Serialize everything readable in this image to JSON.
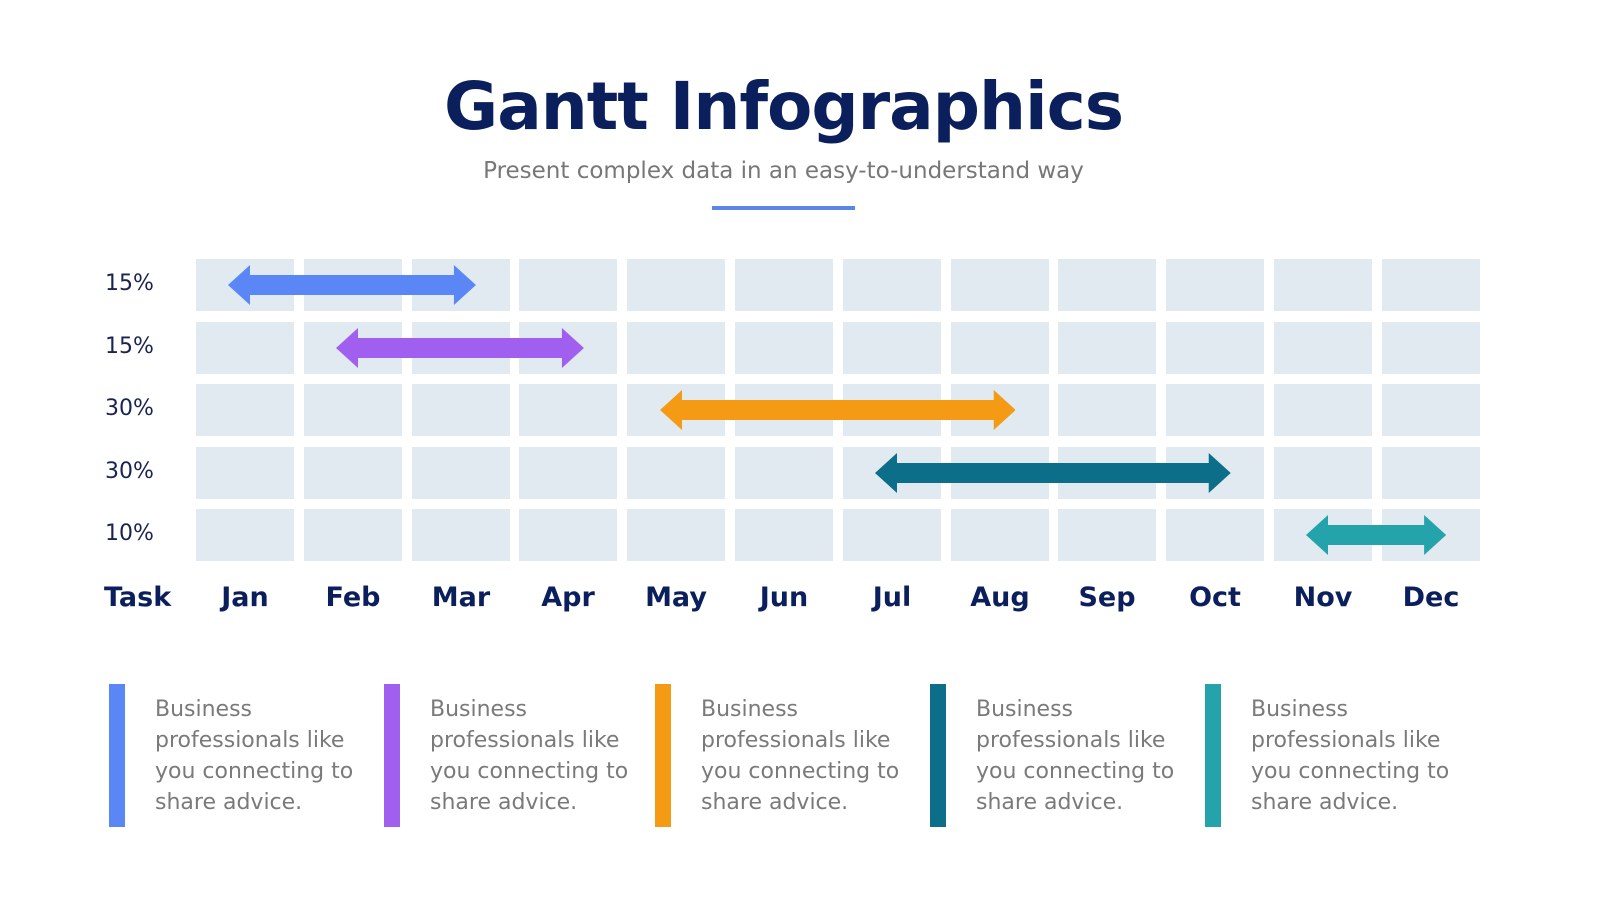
{
  "header": {
    "title": "Gantt Infographics",
    "subtitle": "Present complex data in an easy-to-understand way",
    "underline_color": "#5b86e5"
  },
  "chart_data": {
    "type": "gantt",
    "title": "Gantt Infographics",
    "subtitle": "Present complex data in an easy-to-understand way",
    "xlabel": "Task",
    "categories": [
      "Jan",
      "Feb",
      "Mar",
      "Apr",
      "May",
      "Jun",
      "Jul",
      "Aug",
      "Sep",
      "Oct",
      "Nov",
      "Dec"
    ],
    "tasks": [
      {
        "label": "15%",
        "start": "Jan",
        "end": "Mar",
        "start_index": 0.3,
        "end_index": 2.6,
        "color": "#5b86f5"
      },
      {
        "label": "15%",
        "start": "Feb",
        "end": "Apr",
        "start_index": 1.3,
        "end_index": 3.6,
        "color": "#a15ff0"
      },
      {
        "label": "30%",
        "start": "May",
        "end": "Aug",
        "start_index": 4.3,
        "end_index": 7.6,
        "color": "#f59a14"
      },
      {
        "label": "30%",
        "start": "Jul",
        "end": "Oct",
        "start_index": 6.3,
        "end_index": 9.6,
        "color": "#0d6e8a"
      },
      {
        "label": "10%",
        "start": "Nov",
        "end": "Dec",
        "start_index": 10.3,
        "end_index": 11.6,
        "color": "#24a3aa"
      }
    ],
    "grid": true,
    "cell_color": "#e1e9f1"
  },
  "axis": {
    "task_label": "Task",
    "months": [
      "Jan",
      "Feb",
      "Mar",
      "Apr",
      "May",
      "Jun",
      "Jul",
      "Aug",
      "Sep",
      "Oct",
      "Nov",
      "Dec"
    ]
  },
  "rows": [
    {
      "label": "15%"
    },
    {
      "label": "15%"
    },
    {
      "label": "30%"
    },
    {
      "label": "30%"
    },
    {
      "label": "10%"
    }
  ],
  "legend": [
    {
      "color": "#5b86f5",
      "text": "Business professionals like you connecting to share advice."
    },
    {
      "color": "#a15ff0",
      "text": "Business professionals like you connecting to share advice."
    },
    {
      "color": "#f59a14",
      "text": "Business professionals like you connecting to share advice."
    },
    {
      "color": "#0d6e8a",
      "text": "Business professionals like you connecting to share advice."
    },
    {
      "color": "#24a3aa",
      "text": "Business professionals like you connecting to share advice."
    }
  ]
}
